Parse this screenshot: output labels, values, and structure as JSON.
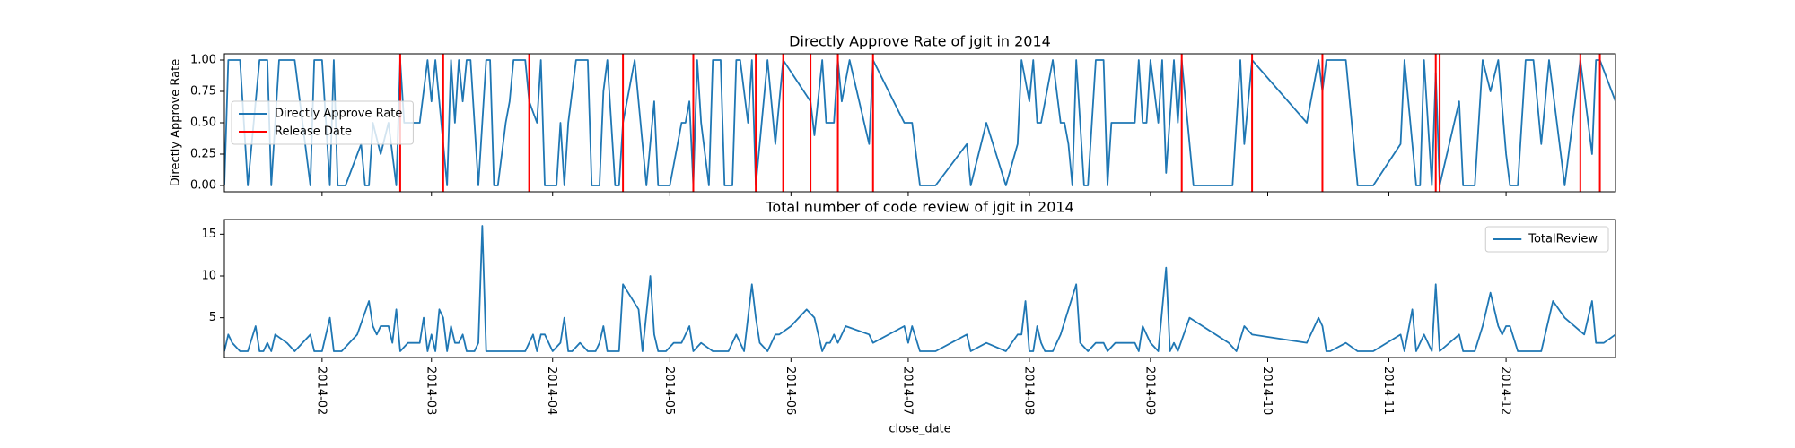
{
  "chart_data": [
    {
      "type": "line",
      "title": "Directly Approve Rate of jgit in 2014",
      "ylabel": "Directly Approve Rate",
      "legend": "center left",
      "xlim": [
        7,
        363
      ],
      "ylim": [
        -0.05,
        1.05
      ],
      "yticks": [
        {
          "value": 0,
          "label": "0.00"
        },
        {
          "value": 0.25,
          "label": "0.25"
        },
        {
          "value": 0.5,
          "label": "0.50"
        },
        {
          "value": 0.75,
          "label": "0.75"
        },
        {
          "value": 1,
          "label": "1.00"
        }
      ],
      "x": [
        7,
        8,
        11,
        13,
        16,
        18,
        19,
        21,
        25,
        29,
        30,
        32,
        34,
        35,
        36,
        38,
        42,
        43,
        44,
        45,
        47,
        49,
        51,
        52,
        53,
        57,
        59,
        60,
        61,
        62,
        64,
        65,
        66,
        67,
        68,
        69,
        70,
        72,
        73,
        74,
        75,
        76,
        77,
        79,
        80,
        81,
        84,
        85,
        87,
        88,
        89,
        92,
        93,
        94,
        95,
        97,
        100,
        101,
        103,
        104,
        105,
        107,
        108,
        109,
        112,
        115,
        117,
        118,
        121,
        124,
        125,
        126,
        127,
        128,
        129,
        131,
        132,
        134,
        135,
        137,
        138,
        139,
        141,
        142,
        143,
        146,
        148,
        150,
        157,
        158,
        160,
        161,
        163,
        164,
        165,
        167,
        172,
        173,
        181,
        183,
        184,
        185,
        189,
        197,
        198,
        202,
        207,
        210,
        211,
        213,
        214,
        215,
        216,
        219,
        221,
        222,
        223,
        224,
        225,
        227,
        228,
        230,
        232,
        233,
        234,
        240,
        241,
        242,
        243,
        244,
        246,
        247,
        248,
        250,
        251,
        252,
        255,
        265,
        267,
        268,
        270,
        284,
        287,
        288,
        289,
        294,
        297,
        301,
        308,
        309,
        312,
        313,
        314,
        316,
        317,
        318,
        323,
        324,
        327,
        329,
        331,
        333,
        335,
        336,
        338,
        340,
        342,
        344,
        346,
        347,
        350,
        354,
        357,
        358,
        359,
        363
      ],
      "series": [
        {
          "name": "Directly Approve Rate",
          "color": "#1f77b4",
          "values": [
            0,
            1,
            1,
            0,
            1,
            1,
            0,
            1,
            1,
            0,
            1,
            1,
            0,
            1,
            0,
            0,
            0.33,
            0,
            0,
            0.5,
            0.25,
            0.5,
            0,
            1,
            0.5,
            0.5,
            1,
            0.67,
            1,
            0.67,
            0,
            1,
            0.5,
            1,
            0.67,
            1,
            1,
            0,
            0.5,
            1,
            1,
            0,
            0,
            0.5,
            0.67,
            1,
            1,
            0.67,
            0.5,
            1,
            0,
            0,
            0.5,
            0,
            0.5,
            1,
            1,
            0,
            0,
            0.75,
            1,
            0,
            0,
            0.5,
            1,
            0,
            0.67,
            0,
            0,
            0.5,
            0.5,
            0.67,
            0,
            1,
            0.5,
            0,
            1,
            1,
            0,
            0,
            1,
            1,
            0.5,
            1,
            0,
            1,
            0.33,
            1,
            0.67,
            0.4,
            1,
            0.5,
            0.5,
            1,
            0.67,
            1,
            0.33,
            1,
            0.5,
            0.5,
            0.25,
            0,
            0,
            0.33,
            0,
            0.5,
            0,
            0.33,
            1,
            0.67,
            1,
            0.5,
            0.5,
            1,
            0.5,
            0.5,
            0.33,
            0,
            1,
            0,
            0,
            1,
            1,
            0,
            0.5,
            0.5,
            1,
            0.5,
            0.5,
            1,
            0.5,
            1,
            0.1,
            1,
            0.5,
            1,
            0,
            0,
            1,
            0.33,
            1,
            0.5,
            1,
            0.75,
            1,
            1,
            0,
            0,
            0.33,
            1,
            0,
            0,
            1,
            0,
            0.9,
            0,
            0.67,
            0,
            0,
            1,
            0.75,
            1,
            0.25,
            0,
            0,
            1,
            1,
            0.33,
            1,
            0.75,
            0,
            1,
            0.25,
            1,
            1,
            0.67
          ]
        }
      ],
      "vlines": {
        "name": "Release Date",
        "color": "#ff0000",
        "x": [
          52,
          63,
          85,
          109,
          127,
          143,
          150,
          157,
          164,
          173,
          252,
          270,
          288,
          317,
          318,
          354,
          359
        ]
      }
    },
    {
      "type": "line",
      "title": "Total number of code review of jgit in 2014",
      "xlabel": "close_date",
      "legend": "upper right",
      "xlim": [
        7,
        363
      ],
      "ylim": [
        0.25,
        16.75
      ],
      "yticks": [
        5,
        10,
        15
      ],
      "xticks": [
        {
          "value": 32,
          "label": "2014-02"
        },
        {
          "value": 60,
          "label": "2014-03"
        },
        {
          "value": 91,
          "label": "2014-04"
        },
        {
          "value": 121,
          "label": "2014-05"
        },
        {
          "value": 152,
          "label": "2014-06"
        },
        {
          "value": 182,
          "label": "2014-07"
        },
        {
          "value": 213,
          "label": "2014-08"
        },
        {
          "value": 244,
          "label": "2014-09"
        },
        {
          "value": 274,
          "label": "2014-10"
        },
        {
          "value": 305,
          "label": "2014-11"
        },
        {
          "value": 335,
          "label": "2014-12"
        }
      ],
      "x": [
        7,
        8,
        9,
        11,
        13,
        15,
        16,
        17,
        18,
        19,
        20,
        23,
        25,
        29,
        30,
        32,
        34,
        35,
        37,
        41,
        44,
        45,
        46,
        47,
        49,
        50,
        51,
        52,
        54,
        57,
        58,
        59,
        60,
        61,
        62,
        63,
        64,
        65,
        66,
        67,
        68,
        69,
        71,
        72,
        73,
        74,
        77,
        84,
        86,
        87,
        88,
        89,
        91,
        93,
        94,
        95,
        96,
        98,
        100,
        102,
        103,
        104,
        105,
        108,
        109,
        113,
        114,
        116,
        117,
        118,
        120,
        122,
        124,
        125,
        126,
        127,
        129,
        132,
        134,
        136,
        138,
        139,
        140,
        142,
        143,
        144,
        146,
        148,
        149,
        152,
        156,
        158,
        160,
        161,
        162,
        163,
        164,
        165,
        166,
        172,
        173,
        181,
        182,
        183,
        185,
        189,
        197,
        198,
        202,
        207,
        210,
        211,
        212,
        213,
        214,
        215,
        216,
        217,
        219,
        221,
        223,
        225,
        226,
        228,
        230,
        232,
        233,
        235,
        240,
        241,
        242,
        244,
        246,
        248,
        249,
        250,
        251,
        254,
        264,
        266,
        268,
        270,
        284,
        287,
        288,
        289,
        290,
        294,
        297,
        301,
        308,
        309,
        311,
        312,
        314,
        316,
        317,
        318,
        323,
        324,
        327,
        329,
        331,
        333,
        334,
        335,
        336,
        338,
        344,
        347,
        350,
        355,
        357,
        358,
        360,
        363
      ],
      "series": [
        {
          "name": "TotalReview",
          "color": "#1f77b4",
          "values": [
            1,
            3,
            2,
            1,
            1,
            4,
            1,
            1,
            2,
            1,
            3,
            2,
            1,
            3,
            1,
            1,
            5,
            1,
            1,
            3,
            7,
            4,
            3,
            4,
            4,
            2,
            6,
            1,
            2,
            2,
            5,
            1,
            3,
            1,
            6,
            5,
            1,
            4,
            2,
            2,
            3,
            1,
            1,
            2,
            16,
            1,
            1,
            1,
            3,
            1,
            3,
            3,
            1,
            2,
            5,
            1,
            1,
            2,
            1,
            1,
            2,
            4,
            1,
            1,
            9,
            6,
            1,
            10,
            3,
            1,
            1,
            2,
            2,
            3,
            4,
            1,
            2,
            1,
            1,
            1,
            3,
            2,
            1,
            9,
            5,
            2,
            1,
            3,
            3,
            4,
            6,
            5,
            1,
            2,
            2,
            3,
            2,
            3,
            4,
            3,
            2,
            4,
            2,
            4,
            1,
            1,
            3,
            1,
            2,
            1,
            3,
            3,
            7,
            1,
            1,
            4,
            2,
            1,
            1,
            3,
            6,
            9,
            2,
            1,
            2,
            2,
            1,
            2,
            2,
            1,
            4,
            2,
            1,
            11,
            1,
            2,
            1,
            5,
            2,
            1,
            4,
            3,
            2,
            5,
            4,
            1,
            1,
            2,
            1,
            1,
            3,
            1,
            6,
            1,
            3,
            1,
            9,
            1,
            3,
            1,
            1,
            4,
            8,
            4,
            3,
            4,
            4,
            1,
            1,
            7,
            5,
            3,
            7,
            2,
            2,
            3
          ]
        }
      ]
    }
  ]
}
